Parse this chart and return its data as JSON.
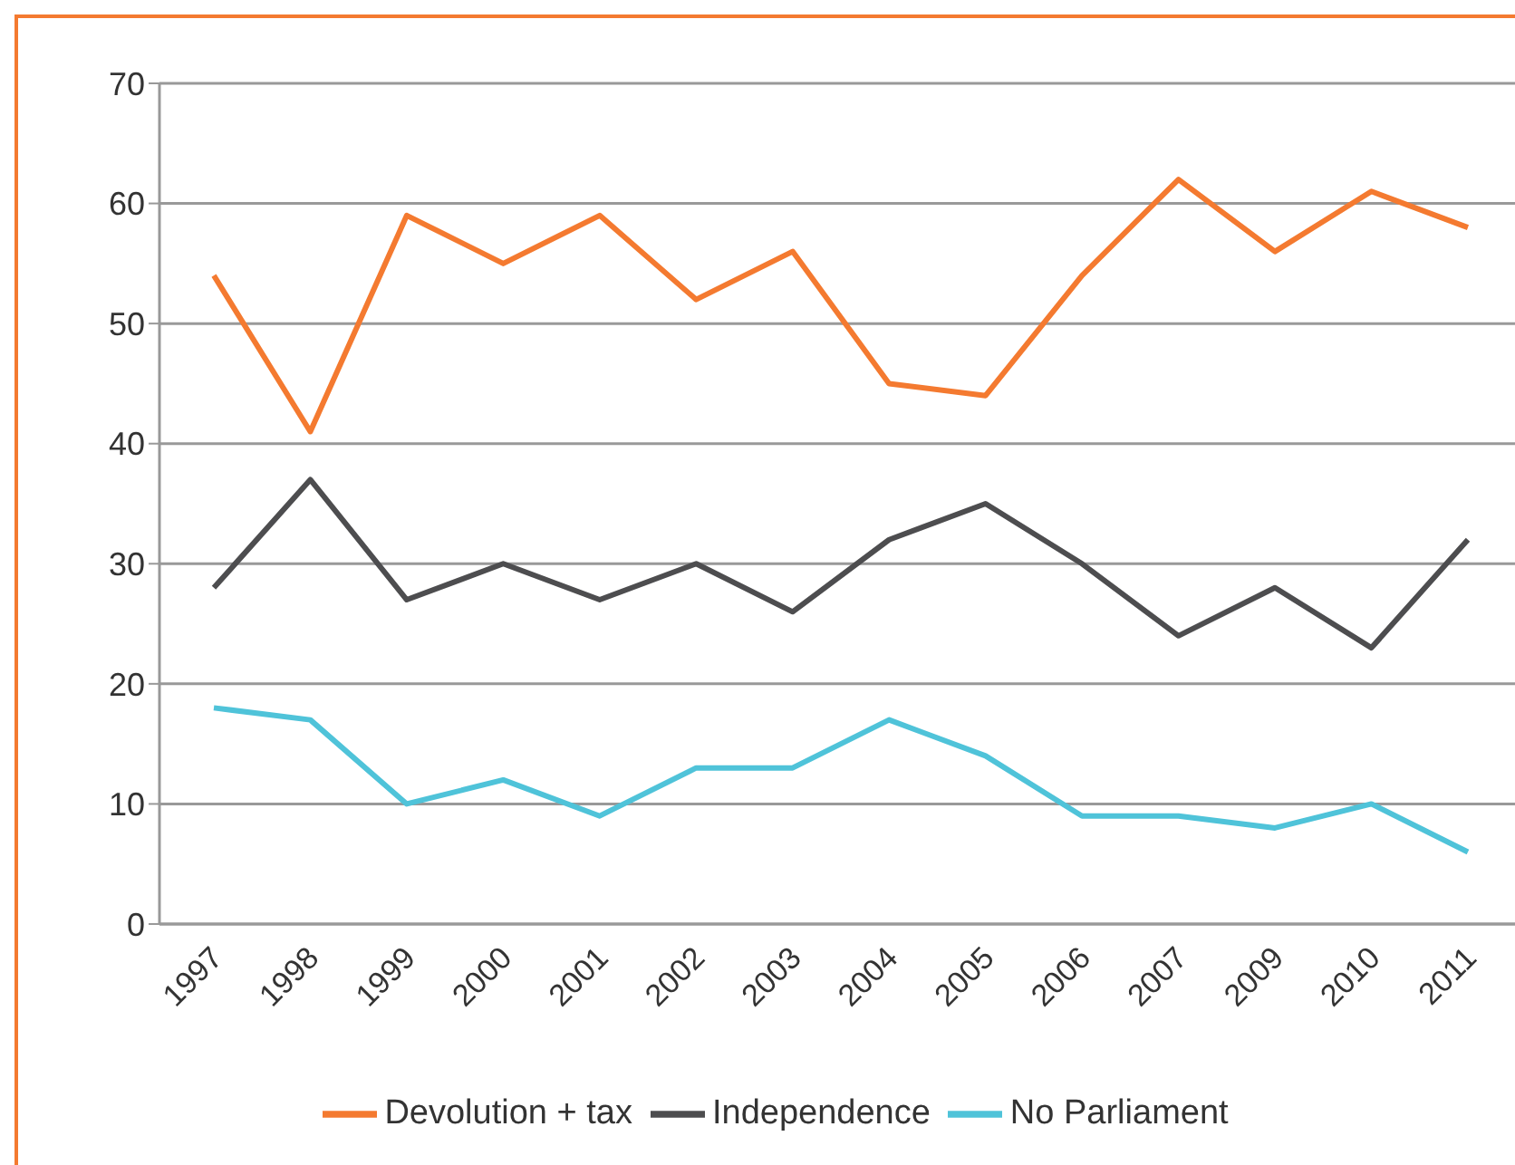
{
  "chart_data": {
    "type": "line",
    "categories": [
      "1997",
      "1998",
      "1999",
      "2000",
      "2001",
      "2002",
      "2003",
      "2004",
      "2005",
      "2006",
      "2007",
      "2009",
      "2010",
      "2011"
    ],
    "series": [
      {
        "name": "Devolution + tax",
        "color": "#f47a30",
        "values": [
          54,
          41,
          59,
          55,
          59,
          52,
          56,
          45,
          44,
          54,
          62,
          56,
          61,
          58
        ]
      },
      {
        "name": "Independence",
        "color": "#4d4d4f",
        "values": [
          28,
          37,
          27,
          30,
          27,
          30,
          26,
          32,
          35,
          30,
          24,
          28,
          23,
          32
        ]
      },
      {
        "name": "No Parliament",
        "color": "#4fc3d9",
        "values": [
          18,
          17,
          10,
          12,
          9,
          13,
          13,
          17,
          14,
          9,
          9,
          8,
          10,
          6
        ]
      }
    ],
    "ylim": [
      0,
      70
    ],
    "yticks": [
      0,
      10,
      20,
      30,
      40,
      50,
      60,
      70
    ],
    "grid": "y",
    "legend": "bottom",
    "marker": "none",
    "line_style": "solid"
  }
}
